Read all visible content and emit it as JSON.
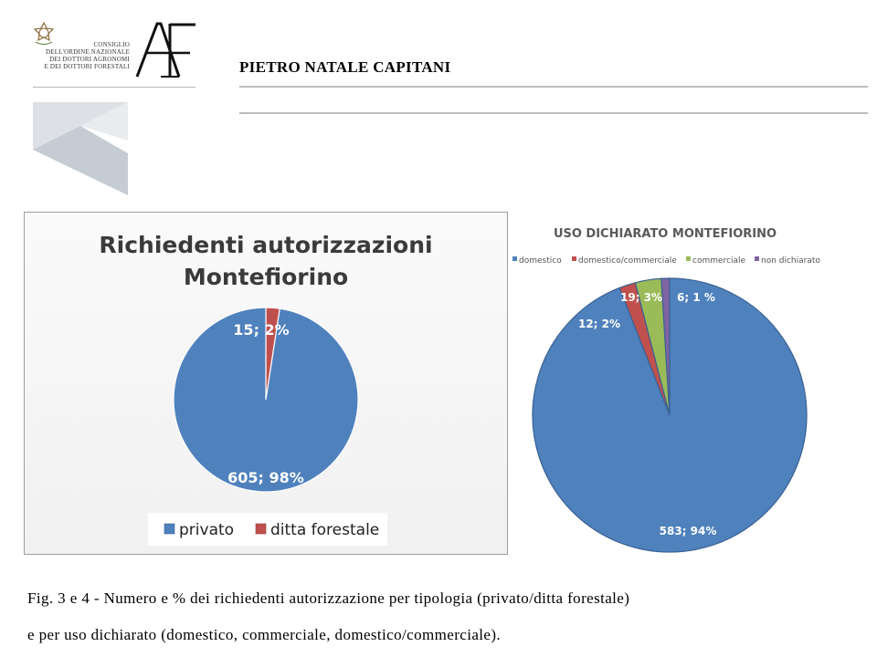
{
  "header": {
    "council_lines": [
      "CONSIGLIO",
      "DELL'ORDINE NAZIONALE",
      "DEI DOTTORI AGRONOMI",
      "E DEI DOTTORI FORESTALI"
    ],
    "logo_mark": "AF",
    "author": "PIETRO NATALE CAPITANI"
  },
  "colors": {
    "blue": "#4f81bd",
    "red": "#c0504d",
    "green": "#9bbb59",
    "purple": "#8064a2",
    "rule": "#bdbdbd"
  },
  "chart_data": [
    {
      "type": "pie",
      "title": "Richiedenti autorizzazioni Montefiorino",
      "title_lines": [
        "Richiedenti autorizzazioni",
        "Montefiorino"
      ],
      "series": [
        {
          "name": "privato",
          "value": 605,
          "percent": 98,
          "label": "605; 98%",
          "color": "#4f81bd"
        },
        {
          "name": "ditta forestale",
          "value": 15,
          "percent": 2,
          "label": "15; 2%",
          "color": "#c0504d"
        }
      ],
      "legend": "bottom"
    },
    {
      "type": "pie",
      "title": "USO DICHIARATO MONTEFIORINO",
      "series": [
        {
          "name": "domestico",
          "value": 583,
          "percent": 94,
          "label": "583; 94%",
          "color": "#4f81bd"
        },
        {
          "name": "domestico/commerciale",
          "value": 12,
          "percent": 2,
          "label": "12; 2%",
          "color": "#c0504d"
        },
        {
          "name": "commerciale",
          "value": 19,
          "percent": 3,
          "label": "19; 3%",
          "color": "#9bbb59"
        },
        {
          "name": "non dichiarato",
          "value": 6,
          "percent": 1,
          "label": "6; 1 %",
          "color": "#8064a2"
        }
      ],
      "legend": "top"
    }
  ],
  "caption": {
    "line1": "Fig. 3 e 4 - Numero e % dei richiedenti autorizzazione per tipologia (privato/ditta forestale)",
    "line2": "e per uso dichiarato (domestico, commerciale, domestico/commerciale)."
  }
}
